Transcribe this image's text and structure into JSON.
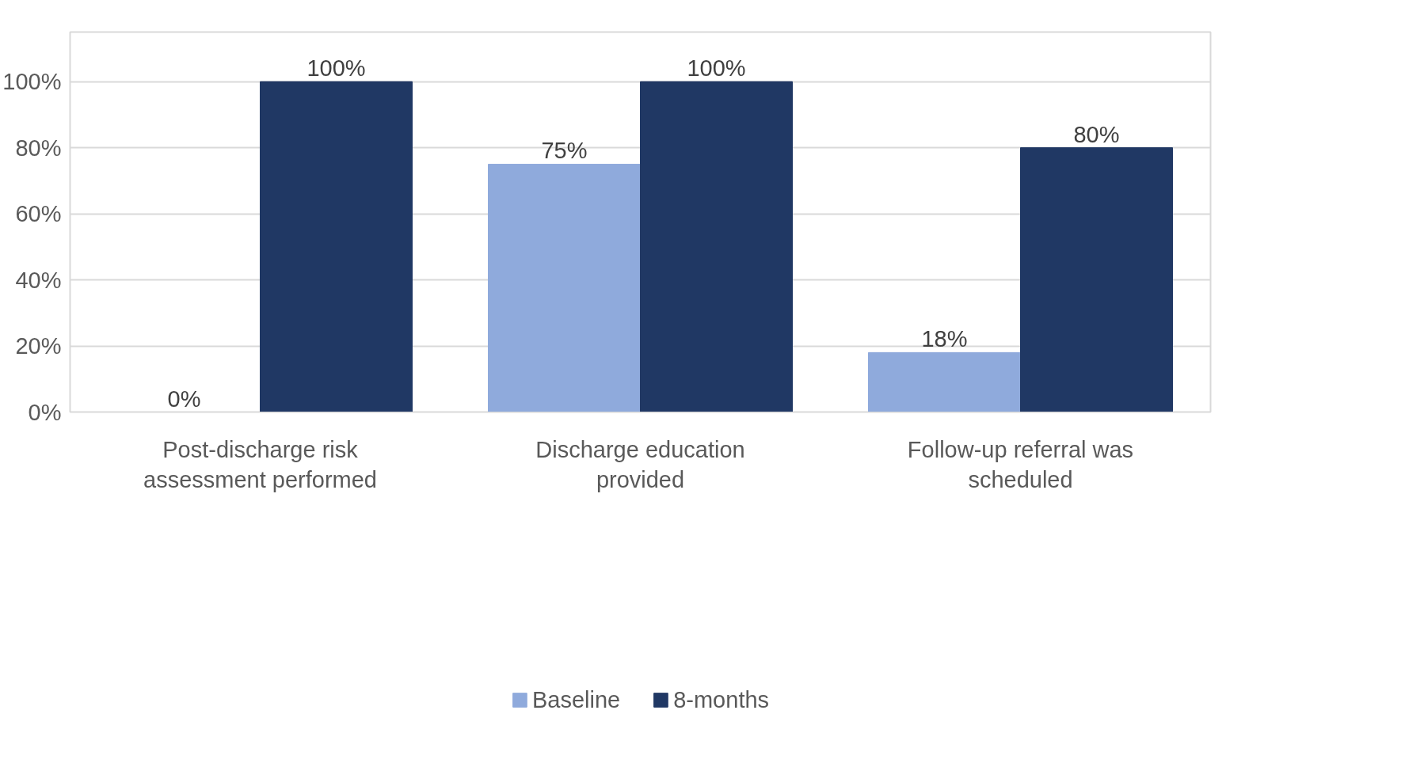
{
  "chart_data": {
    "type": "bar",
    "categories": [
      "Post-discharge risk assessment performed",
      "Discharge education provided",
      "Follow-up referral was scheduled"
    ],
    "series": [
      {
        "name": "Baseline",
        "color": "#8faadc",
        "values": [
          0,
          75,
          18
        ],
        "value_labels": [
          "0%",
          "75%",
          "18%"
        ]
      },
      {
        "name": "8-months",
        "color": "#203864",
        "values": [
          100,
          100,
          80
        ],
        "value_labels": [
          "100%",
          "100%",
          "80%"
        ]
      }
    ],
    "ylim": [
      0,
      115
    ],
    "yticks": [
      {
        "value": 0,
        "label": "0%"
      },
      {
        "value": 20,
        "label": "20%"
      },
      {
        "value": 40,
        "label": "40%"
      },
      {
        "value": 60,
        "label": "60%"
      },
      {
        "value": 80,
        "label": "80%"
      },
      {
        "value": 100,
        "label": "100%"
      }
    ],
    "grid": "y",
    "legend": "bottom"
  }
}
